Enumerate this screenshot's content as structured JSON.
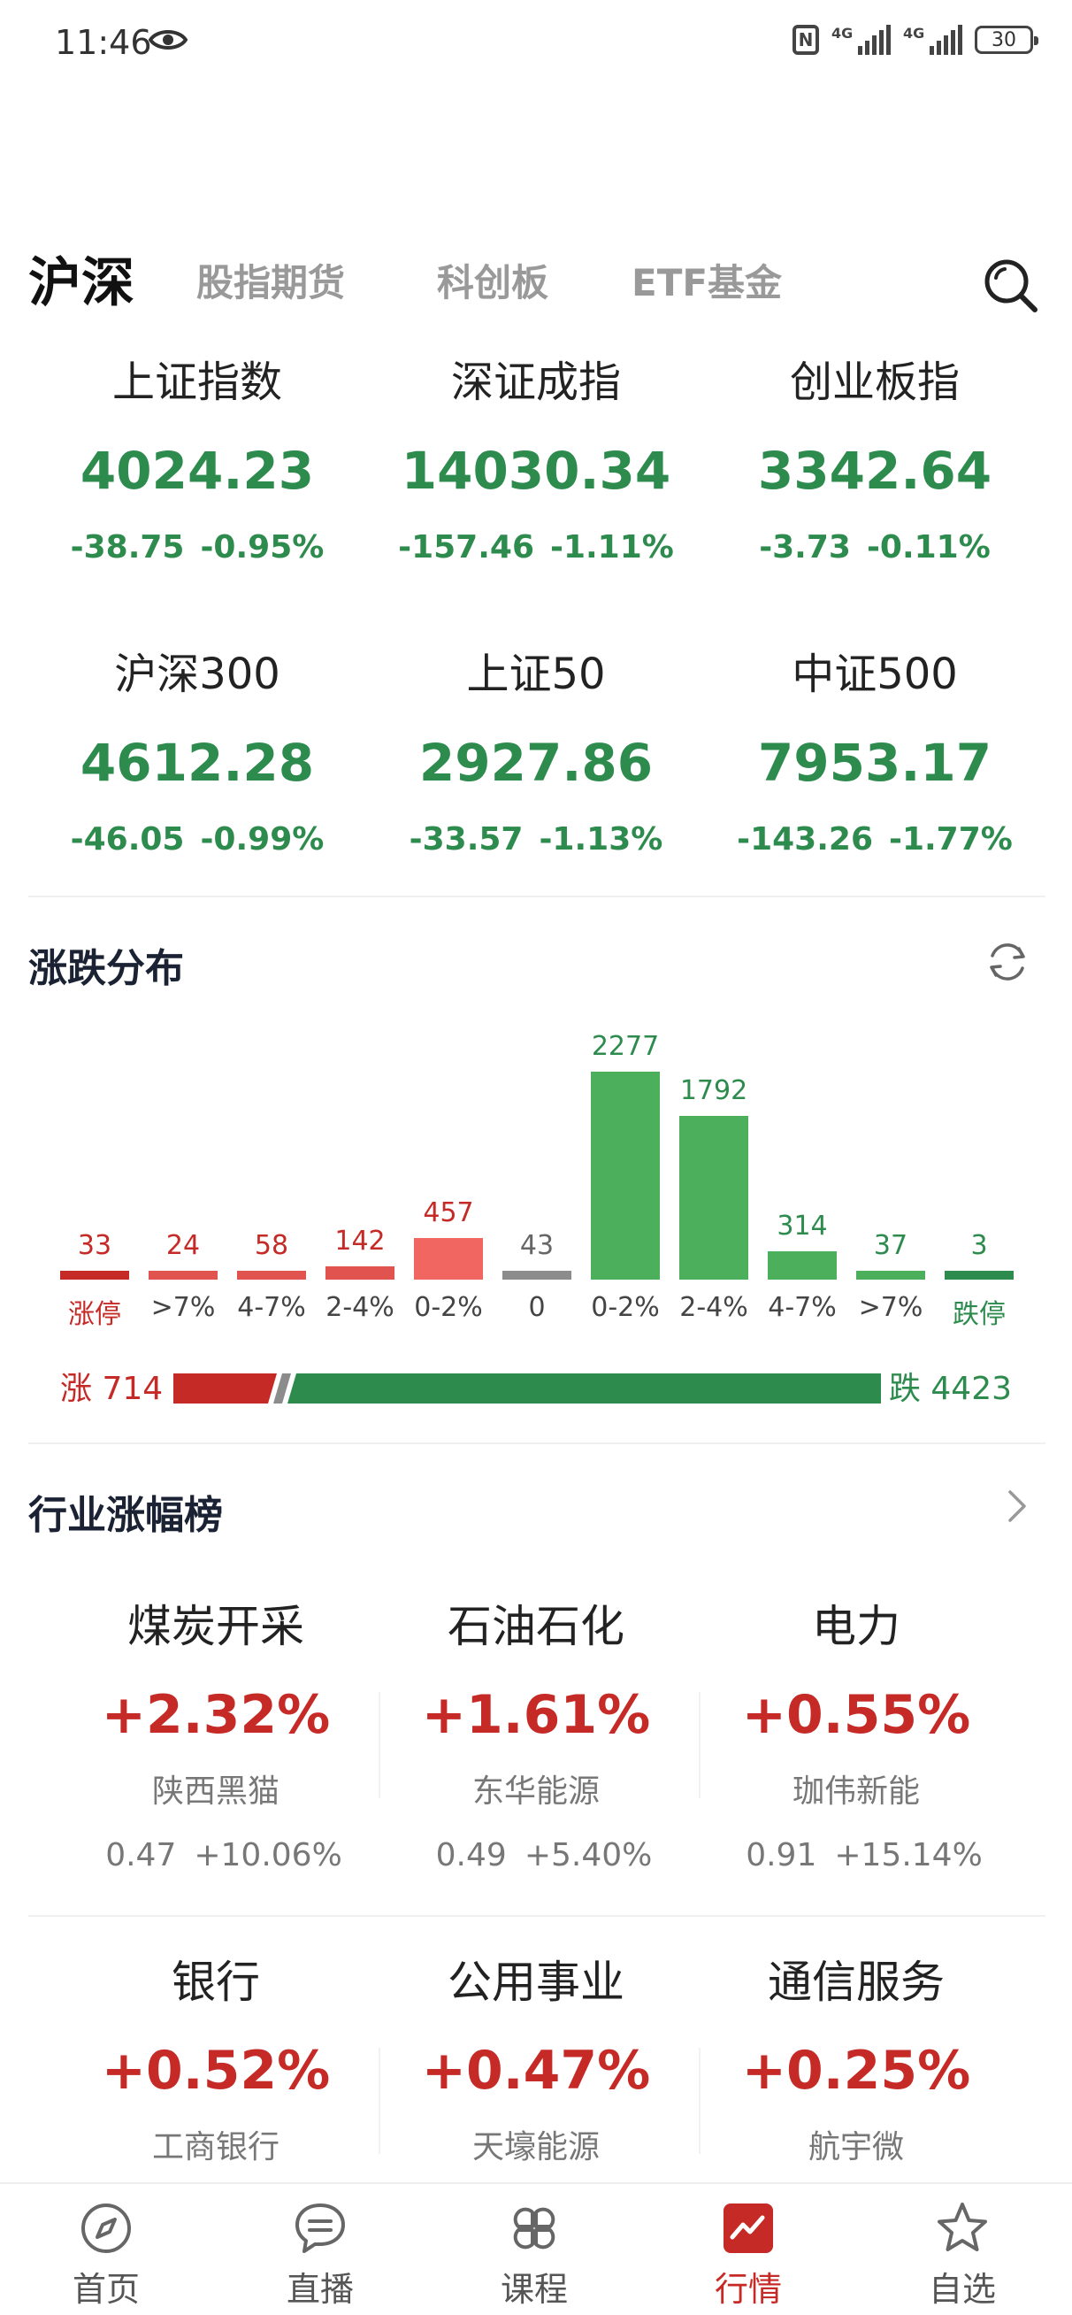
{
  "status_bar": {
    "time": "11:46",
    "battery": "30",
    "network": "4G"
  },
  "tabs": [
    {
      "label": "沪深",
      "active": true
    },
    {
      "label": "股指期货",
      "active": false
    },
    {
      "label": "科创板",
      "active": false
    },
    {
      "label": "ETF基金",
      "active": false
    }
  ],
  "indices": [
    {
      "name": "上证指数",
      "value": "4024.23",
      "change": "-38.75",
      "pct": "-0.95%"
    },
    {
      "name": "深证成指",
      "value": "14030.34",
      "change": "-157.46",
      "pct": "-1.11%"
    },
    {
      "name": "创业板指",
      "value": "3342.64",
      "change": "-3.73",
      "pct": "-0.11%"
    },
    {
      "name": "沪深300",
      "value": "4612.28",
      "change": "-46.05",
      "pct": "-0.99%"
    },
    {
      "name": "上证50",
      "value": "2927.86",
      "change": "-33.57",
      "pct": "-1.13%"
    },
    {
      "name": "中证500",
      "value": "7953.17",
      "change": "-143.26",
      "pct": "-1.77%"
    }
  ],
  "distribution": {
    "title": "涨跌分布",
    "max_value": 2277,
    "colors": {
      "limit_up": "#c62a26",
      "up": "#e0534f",
      "flat": "#8c8c8c",
      "down": "#4caf5c",
      "limit_down": "#2e8b4e"
    },
    "buckets": [
      {
        "label": "涨停",
        "value": 33,
        "kind": "limit_up"
      },
      {
        "label": ">7%",
        "value": 24,
        "kind": "up"
      },
      {
        "label": "4-7%",
        "value": 58,
        "kind": "up"
      },
      {
        "label": "2-4%",
        "value": 142,
        "kind": "up"
      },
      {
        "label": "0-2%",
        "value": 457,
        "kind": "up_light"
      },
      {
        "label": "0",
        "value": 43,
        "kind": "flat"
      },
      {
        "label": "0-2%",
        "value": 2277,
        "kind": "down"
      },
      {
        "label": "2-4%",
        "value": 1792,
        "kind": "down"
      },
      {
        "label": "4-7%",
        "value": 314,
        "kind": "down"
      },
      {
        "label": ">7%",
        "value": 37,
        "kind": "down"
      },
      {
        "label": "跌停",
        "value": 3,
        "kind": "limit_down"
      }
    ],
    "up_label": "涨 714",
    "down_label": "跌 4423",
    "up_count": 714,
    "down_count": 4423
  },
  "industry": {
    "title": "行业涨幅榜",
    "items": [
      {
        "name": "煤炭开采",
        "pct": "+2.32%",
        "stock": "陕西黑猫",
        "price": "0.47",
        "stock_pct": "+10.06%"
      },
      {
        "name": "石油石化",
        "pct": "+1.61%",
        "stock": "东华能源",
        "price": "0.49",
        "stock_pct": "+5.40%"
      },
      {
        "name": "电力",
        "pct": "+0.55%",
        "stock": "珈伟新能",
        "price": "0.91",
        "stock_pct": "+15.14%"
      },
      {
        "name": "银行",
        "pct": "+0.52%",
        "stock": "工商银行"
      },
      {
        "name": "公用事业",
        "pct": "+0.47%",
        "stock": "天壕能源"
      },
      {
        "name": "通信服务",
        "pct": "+0.25%",
        "stock": "航宇微"
      }
    ]
  },
  "bottom_nav": [
    {
      "label": "首页",
      "icon": "compass-icon",
      "active": false
    },
    {
      "label": "直播",
      "icon": "chat-bubble-icon",
      "active": false
    },
    {
      "label": "课程",
      "icon": "grid-clover-icon",
      "active": false
    },
    {
      "label": "行情",
      "icon": "market-chart-icon",
      "active": true
    },
    {
      "label": "自选",
      "icon": "star-icon",
      "active": false
    }
  ]
}
